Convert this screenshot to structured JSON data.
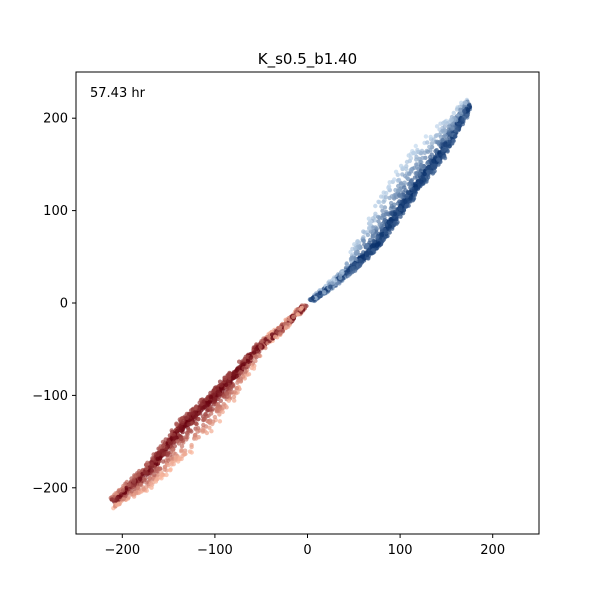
{
  "chart_data": {
    "type": "scatter",
    "title": "K_s0.5_b1.40",
    "annotation": "57.43 hr",
    "xlabel": "",
    "ylabel": "",
    "xlim": [
      -250,
      250
    ],
    "ylim": [
      -250,
      250
    ],
    "xticks": [
      -200,
      -100,
      0,
      100,
      200
    ],
    "yticks": [
      -200,
      -100,
      0,
      100,
      200
    ],
    "xtick_labels": [
      "−200",
      "−100",
      "0",
      "100",
      "200"
    ],
    "ytick_labels": [
      "−200",
      "−100",
      "0",
      "100",
      "200"
    ],
    "grid": false,
    "legend": "none",
    "series": [
      {
        "colormap": "Blues",
        "color_light": "#c6dbef",
        "color_dark": "#08306b",
        "spine": [
          [
            5,
            3
          ],
          [
            30,
            22
          ],
          [
            55,
            45
          ],
          [
            75,
            65
          ],
          [
            95,
            95
          ],
          [
            120,
            130
          ],
          [
            150,
            170
          ],
          [
            175,
            215
          ]
        ],
        "spread_low": [
          -4,
          -10
        ],
        "spread_high": [
          4,
          55
        ],
        "spread_at": [
          [
            5,
            2,
            2
          ],
          [
            40,
            4,
            6
          ],
          [
            60,
            5,
            30
          ],
          [
            80,
            6,
            45
          ],
          [
            110,
            8,
            45
          ],
          [
            150,
            8,
            30
          ],
          [
            175,
            5,
            10
          ]
        ]
      },
      {
        "colormap": "Reds",
        "color_light": "#fcbba1",
        "color_dark": "#67000d",
        "spine": [
          [
            -3,
            -3
          ],
          [
            -30,
            -30
          ],
          [
            -55,
            -50
          ],
          [
            -80,
            -80
          ],
          [
            -110,
            -110
          ],
          [
            -140,
            -140
          ],
          [
            -170,
            -180
          ],
          [
            -210,
            -215
          ]
        ],
        "spread_at": [
          [
            -5,
            2,
            2
          ],
          [
            -40,
            4,
            4
          ],
          [
            -70,
            6,
            20
          ],
          [
            -100,
            8,
            35
          ],
          [
            -130,
            10,
            35
          ],
          [
            -160,
            10,
            25
          ],
          [
            -205,
            6,
            8
          ]
        ]
      }
    ]
  }
}
